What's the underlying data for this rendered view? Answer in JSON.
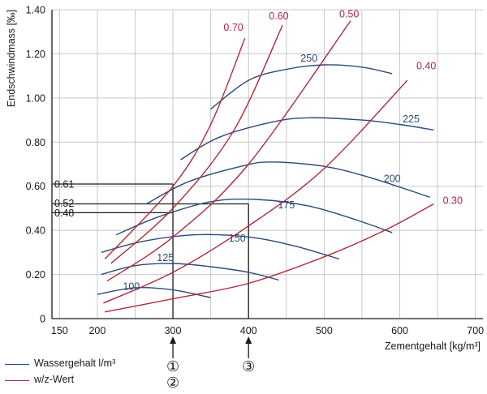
{
  "chart_data": {
    "type": "line",
    "xlabel": "Zementgehalt [kg/m³]",
    "ylabel": "Endschwindmass [‰]",
    "xlim": [
      140,
      710
    ],
    "ylim": [
      0,
      1.4
    ],
    "x_ticks": [
      "150",
      "200",
      "300",
      "400",
      "500",
      "600",
      "700"
    ],
    "y_ticks": [
      "0",
      "0.20",
      "0.40",
      "0.60",
      "0.80",
      "1.00",
      "1.20",
      "1.40"
    ],
    "grid": true,
    "colors": {
      "water": "#2b4a7a",
      "wc": "#b5283a"
    },
    "water_series": [
      {
        "name": "100",
        "points": [
          [
            200,
            0.11
          ],
          [
            250,
            0.14
          ],
          [
            300,
            0.13
          ],
          [
            350,
            0.095
          ]
        ]
      },
      {
        "name": "125",
        "points": [
          [
            205,
            0.2
          ],
          [
            250,
            0.24
          ],
          [
            300,
            0.25
          ],
          [
            350,
            0.235
          ],
          [
            400,
            0.21
          ],
          [
            440,
            0.175
          ]
        ]
      },
      {
        "name": "150",
        "points": [
          [
            205,
            0.3
          ],
          [
            260,
            0.35
          ],
          [
            330,
            0.38
          ],
          [
            400,
            0.37
          ],
          [
            460,
            0.33
          ],
          [
            520,
            0.27
          ]
        ]
      },
      {
        "name": "175",
        "points": [
          [
            225,
            0.38
          ],
          [
            280,
            0.46
          ],
          [
            350,
            0.53
          ],
          [
            410,
            0.54
          ],
          [
            480,
            0.51
          ],
          [
            540,
            0.45
          ],
          [
            590,
            0.39
          ]
        ]
      },
      {
        "name": "200",
        "points": [
          [
            265,
            0.52
          ],
          [
            320,
            0.62
          ],
          [
            390,
            0.69
          ],
          [
            430,
            0.71
          ],
          [
            500,
            0.69
          ],
          [
            560,
            0.64
          ],
          [
            640,
            0.55
          ]
        ]
      },
      {
        "name": "225",
        "points": [
          [
            310,
            0.72
          ],
          [
            360,
            0.82
          ],
          [
            430,
            0.89
          ],
          [
            480,
            0.91
          ],
          [
            550,
            0.9
          ],
          [
            600,
            0.88
          ],
          [
            645,
            0.855
          ]
        ]
      },
      {
        "name": "250",
        "points": [
          [
            350,
            0.95
          ],
          [
            400,
            1.08
          ],
          [
            450,
            1.13
          ],
          [
            500,
            1.15
          ],
          [
            550,
            1.14
          ],
          [
            590,
            1.11
          ]
        ]
      }
    ],
    "wc_series": [
      {
        "name": "0.70",
        "points": [
          [
            210,
            0.27
          ],
          [
            300,
            0.6
          ],
          [
            350,
            0.88
          ],
          [
            395,
            1.27
          ]
        ]
      },
      {
        "name": "0.60",
        "points": [
          [
            218,
            0.25
          ],
          [
            300,
            0.5
          ],
          [
            380,
            0.85
          ],
          [
            445,
            1.33
          ]
        ]
      },
      {
        "name": "0.50",
        "points": [
          [
            213,
            0.17
          ],
          [
            300,
            0.37
          ],
          [
            400,
            0.7
          ],
          [
            535,
            1.35
          ]
        ]
      },
      {
        "name": "0.40",
        "points": [
          [
            208,
            0.07
          ],
          [
            300,
            0.21
          ],
          [
            400,
            0.42
          ],
          [
            500,
            0.68
          ],
          [
            610,
            1.08
          ]
        ]
      },
      {
        "name": "0.30",
        "points": [
          [
            210,
            0.03
          ],
          [
            300,
            0.09
          ],
          [
            400,
            0.16
          ],
          [
            500,
            0.28
          ],
          [
            580,
            0.4
          ],
          [
            645,
            0.52
          ]
        ]
      }
    ],
    "annotations": {
      "ref_values": [
        "0.61",
        "0.52",
        "0.48"
      ],
      "markers": [
        "①",
        "②",
        "③"
      ]
    },
    "legend": [
      {
        "label": "Wassergehalt l/m³",
        "color": "#2b4a7a"
      },
      {
        "label": "w/z-Wert",
        "color": "#b5283a"
      }
    ]
  }
}
